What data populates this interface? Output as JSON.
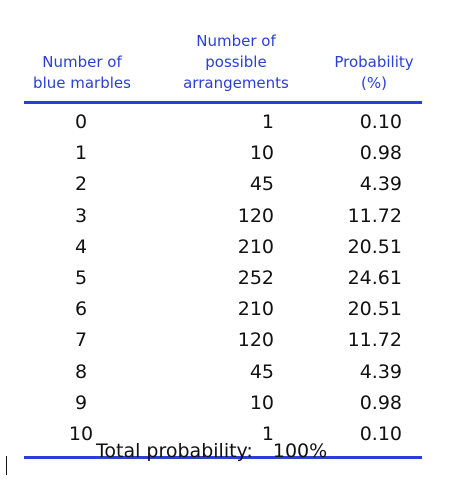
{
  "table": {
    "headers": {
      "col1": "Number of\nblue marbles",
      "col2": "Number of\npossible\narrangements",
      "col3": "Probability\n(%)"
    },
    "rows": [
      {
        "n": "0",
        "arrangements": "1",
        "probability": "0.10"
      },
      {
        "n": "1",
        "arrangements": "10",
        "probability": "0.98"
      },
      {
        "n": "2",
        "arrangements": "45",
        "probability": "4.39"
      },
      {
        "n": "3",
        "arrangements": "120",
        "probability": "11.72"
      },
      {
        "n": "4",
        "arrangements": "210",
        "probability": "20.51"
      },
      {
        "n": "5",
        "arrangements": "252",
        "probability": "24.61"
      },
      {
        "n": "6",
        "arrangements": "210",
        "probability": "20.51"
      },
      {
        "n": "7",
        "arrangements": "120",
        "probability": "11.72"
      },
      {
        "n": "8",
        "arrangements": "45",
        "probability": "4.39"
      },
      {
        "n": "9",
        "arrangements": "10",
        "probability": "0.98"
      },
      {
        "n": "10",
        "arrangements": "1",
        "probability": "0.10"
      }
    ],
    "total": {
      "label": "Total probability:",
      "value": "100%"
    }
  },
  "colors": {
    "header_text": "#2a3fd6",
    "rule": "#2a3fd6",
    "body_text": "#111111"
  }
}
